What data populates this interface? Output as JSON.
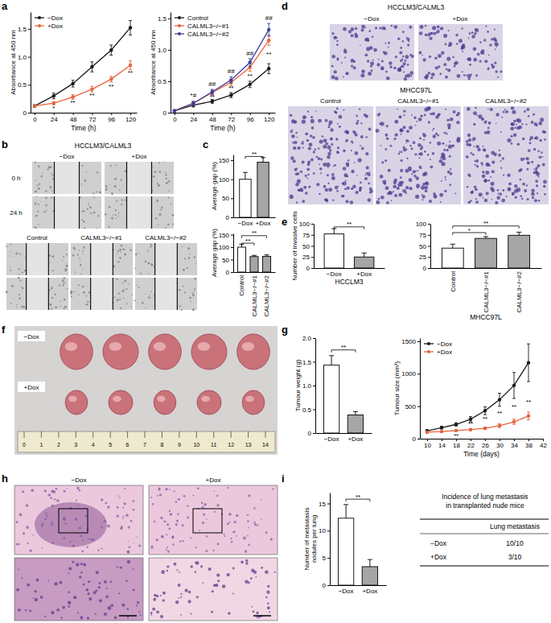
{
  "panel_labels": [
    "a",
    "b",
    "c",
    "d",
    "e",
    "f",
    "g",
    "h",
    "i"
  ],
  "chart_data": [
    {
      "type": "line",
      "x_label": "Time (h)",
      "y_label": "Absorbance at 450 nm",
      "x": [
        0,
        24,
        48,
        72,
        96,
        120
      ],
      "xlim": [
        -5,
        128
      ],
      "xticks": [
        0,
        24,
        48,
        72,
        96,
        120
      ],
      "ylim": [
        0,
        1.8
      ],
      "yticks": [
        0,
        0.5,
        {
          "value": 1,
          "label": "1.0"
        },
        1.5
      ],
      "legend": "top-left",
      "series": [
        {
          "name": "−Dox",
          "color": "#1a1a1a",
          "marker": "circle",
          "values": [
            0.12,
            0.3,
            0.52,
            0.82,
            1.12,
            1.52
          ],
          "errors": [
            0.02,
            0.05,
            0.06,
            0.09,
            0.09,
            0.13
          ]
        },
        {
          "name": "+Dox",
          "color": "#e8643c",
          "marker": "circle",
          "values": [
            0.12,
            0.17,
            0.28,
            0.42,
            0.6,
            0.85
          ],
          "errors": [
            0.02,
            0.03,
            0.04,
            0.05,
            0.05,
            0.08
          ]
        }
      ],
      "annotations": [
        {
          "x": 24,
          "y": 0.07,
          "text": "*"
        },
        {
          "x": 48,
          "y": 0.17,
          "text": "**"
        },
        {
          "x": 72,
          "y": 0.3,
          "text": "**"
        },
        {
          "x": 96,
          "y": 0.46,
          "text": "**"
        },
        {
          "x": 120,
          "y": 0.7,
          "text": "**"
        }
      ]
    },
    {
      "type": "line",
      "x_label": "Time (h)",
      "y_label": "Absorbance at 450 nm",
      "x": [
        0,
        24,
        48,
        72,
        96,
        120
      ],
      "xlim": [
        -5,
        128
      ],
      "xticks": [
        0,
        24,
        48,
        72,
        96,
        120
      ],
      "ylim": [
        0,
        1.6
      ],
      "yticks": [
        0,
        0.5,
        {
          "value": 1,
          "label": "1.0"
        },
        1.5
      ],
      "legend": "top-left",
      "series": [
        {
          "name": "Control",
          "color": "#1a1a1a",
          "marker": "circle",
          "values": [
            0.03,
            0.12,
            0.18,
            0.28,
            0.45,
            0.7
          ],
          "errors": [
            0.01,
            0.03,
            0.03,
            0.04,
            0.05,
            0.08
          ]
        },
        {
          "name": "CALML3−/−#1",
          "color": "#e8643c",
          "marker": "circle",
          "values": [
            0.03,
            0.15,
            0.32,
            0.48,
            0.72,
            1.15
          ],
          "errors": [
            0.01,
            0.03,
            0.04,
            0.05,
            0.06,
            0.08
          ]
        },
        {
          "name": "CALML3−/−#2",
          "color": "#3b3f9e",
          "marker": "circle",
          "values": [
            0.03,
            0.15,
            0.33,
            0.52,
            0.8,
            1.32
          ],
          "errors": [
            0.01,
            0.03,
            0.04,
            0.05,
            0.06,
            0.1
          ]
        }
      ],
      "annotations": [
        {
          "x": 24,
          "y": 0.27,
          "text": "*#"
        },
        {
          "x": 48,
          "y": 0.45,
          "text": "##"
        },
        {
          "x": 72,
          "y": 0.66,
          "text": "##"
        },
        {
          "x": 96,
          "y": 0.94,
          "text": "##"
        },
        {
          "x": 120,
          "y": 1.5,
          "text": "##"
        },
        {
          "x": 48,
          "y": 0.25,
          "text": "**"
        },
        {
          "x": 72,
          "y": 0.38,
          "text": "**"
        },
        {
          "x": 96,
          "y": 0.58,
          "text": "**"
        },
        {
          "x": 120,
          "y": 0.92,
          "text": "**"
        }
      ]
    },
    {
      "type": "bar",
      "y_label": "Average gap (%)",
      "categories": [
        "−Dox",
        "+Dox"
      ],
      "values": [
        100,
        145
      ],
      "errors": [
        18,
        12
      ],
      "colors": [
        "#ffffff",
        "#a6a6a6"
      ],
      "ylim": [
        0,
        165
      ],
      "yticks": [
        0,
        50,
        100,
        150
      ],
      "annotations": [
        {
          "x0": 0,
          "x1": 1,
          "y": 160,
          "text": "**"
        }
      ]
    },
    {
      "type": "bar",
      "y_label": "Average gap (%)",
      "categories": [
        "Control",
        "CALML3−/−#1",
        "CALML3−/−#2"
      ],
      "values": [
        100,
        62,
        63
      ],
      "errors": [
        12,
        5,
        6
      ],
      "colors": [
        "#ffffff",
        "#a6a6a6",
        "#a6a6a6"
      ],
      "ylim": [
        0,
        155
      ],
      "yticks": [
        0,
        50,
        100,
        150
      ],
      "annotations": [
        {
          "x0": 0,
          "x1": 1,
          "y": 116,
          "text": "**"
        },
        {
          "x0": 0,
          "x1": 2,
          "y": 146,
          "text": "**"
        }
      ]
    },
    {
      "type": "bar",
      "y_label": "Number of invasive cells",
      "x_label": "HCCLM3",
      "categories": [
        "−Dox",
        "+Dox"
      ],
      "values": [
        77,
        25
      ],
      "errors": [
        12,
        9
      ],
      "colors": [
        "#ffffff",
        "#a6a6a6"
      ],
      "ylim": [
        0,
        100
      ],
      "yticks": [
        0,
        25,
        50,
        75,
        100
      ],
      "annotations": [
        {
          "x0": 0,
          "x1": 1,
          "y": 93,
          "text": "**"
        }
      ]
    },
    {
      "type": "bar",
      "x_label": "MHCC97L",
      "categories": [
        "Control",
        "CALML3−/−#1",
        "CALML3−/−#2"
      ],
      "values": [
        45,
        67,
        74
      ],
      "errors": [
        9,
        4,
        7
      ],
      "colors": [
        "#ffffff",
        "#a6a6a6",
        "#a6a6a6"
      ],
      "ylim": [
        0,
        100
      ],
      "yticks": [
        0,
        25,
        50,
        75,
        100
      ],
      "annotations": [
        {
          "x0": 0,
          "x1": 1,
          "y": 80,
          "text": "*"
        },
        {
          "x0": 0,
          "x1": 2,
          "y": 95,
          "text": "**"
        }
      ]
    },
    {
      "type": "bar",
      "y_label": "Tumour weight (g)",
      "categories": [
        "−Dox",
        "+Dox"
      ],
      "values": [
        1.43,
        0.38
      ],
      "errors": [
        0.2,
        0.07
      ],
      "colors": [
        "#ffffff",
        "#a6a6a6"
      ],
      "ylim": [
        0,
        2
      ],
      "yticks": [
        0,
        0.5,
        {
          "value": 1,
          "label": "1.0"
        },
        1.5,
        {
          "value": 2,
          "label": "2.0"
        }
      ],
      "annotations": [
        {
          "x0": 0,
          "x1": 1,
          "y": 1.75,
          "text": "**"
        }
      ]
    },
    {
      "type": "line",
      "x_label": "Time (days)",
      "y_label": "Tumour size (mm³)",
      "x": [
        10,
        14,
        18,
        22,
        26,
        30,
        34,
        38
      ],
      "xlim": [
        8,
        42
      ],
      "xticks": [
        10,
        14,
        18,
        22,
        26,
        30,
        34,
        38,
        42
      ],
      "ylim": [
        0,
        1550
      ],
      "yticks": [
        0,
        500,
        1000,
        1500
      ],
      "legend": "top-left",
      "series": [
        {
          "name": "−Dox",
          "color": "#1a1a1a",
          "marker": "circle",
          "values": [
            120,
            170,
            220,
            300,
            430,
            600,
            820,
            1170
          ],
          "errors": [
            15,
            20,
            25,
            40,
            60,
            100,
            200,
            290
          ]
        },
        {
          "name": "+Dox",
          "color": "#e8643c",
          "marker": "circle",
          "values": [
            100,
            110,
            125,
            140,
            160,
            200,
            260,
            350
          ],
          "errors": [
            10,
            10,
            12,
            15,
            20,
            30,
            40,
            60
          ]
        }
      ],
      "annotations": [
        {
          "x": 18,
          "y": 40,
          "text": "**"
        },
        {
          "x": 22,
          "y": 225,
          "text": "**"
        },
        {
          "x": 26,
          "y": 300,
          "text": "**"
        },
        {
          "x": 30,
          "y": 380,
          "text": "**"
        },
        {
          "x": 34,
          "y": 480,
          "text": "**"
        },
        {
          "x": 38,
          "y": 560,
          "text": "**"
        }
      ]
    },
    {
      "type": "bar",
      "y_label": [
        "Number of metastasis",
        "nodules per lung"
      ],
      "categories": [
        "−Dox",
        "+Dox"
      ],
      "values": [
        12.3,
        3.4
      ],
      "errors": [
        2.5,
        1.3
      ],
      "colors": [
        "#ffffff",
        "#a6a6a6"
      ],
      "ylim": [
        0,
        17
      ],
      "yticks": [
        0,
        5,
        10,
        15
      ],
      "annotations": [
        {
          "x0": 0,
          "x1": 1,
          "y": 15.8,
          "text": "**"
        }
      ]
    }
  ],
  "images": {
    "b": {
      "groups": [
        {
          "title": "HCCLM3/CALML3",
          "columns": [
            "−Dox",
            "+Dox"
          ],
          "rows": [
            "0 h",
            "24 h"
          ]
        },
        {
          "columns": [
            "Control",
            "CALML3−/−#1",
            "CALML3−/−#2"
          ]
        }
      ]
    },
    "d": {
      "groups": [
        {
          "title": "HCCLM3/CALML3",
          "columns": [
            "−Dox",
            "+Dox"
          ]
        },
        {
          "title": "MHCC97L",
          "columns": [
            "Control",
            "CALML3−/−#1",
            "CALML3−/−#2"
          ]
        }
      ]
    },
    "f": {
      "rows": [
        "−Dox",
        "+Dox"
      ],
      "ruler": [
        0,
        1,
        2,
        3,
        4,
        5,
        6,
        7,
        8,
        9,
        10,
        11,
        12,
        13,
        14
      ]
    },
    "h": {
      "columns": [
        "−Dox",
        "+Dox"
      ]
    }
  },
  "table": {
    "title": [
      "Incidence of lung metastasis",
      "in transplanted nude mice"
    ],
    "header": "Lung metastasis",
    "rows": [
      [
        "−Dox",
        "10/10"
      ],
      [
        "+Dox",
        "3/10"
      ]
    ]
  }
}
